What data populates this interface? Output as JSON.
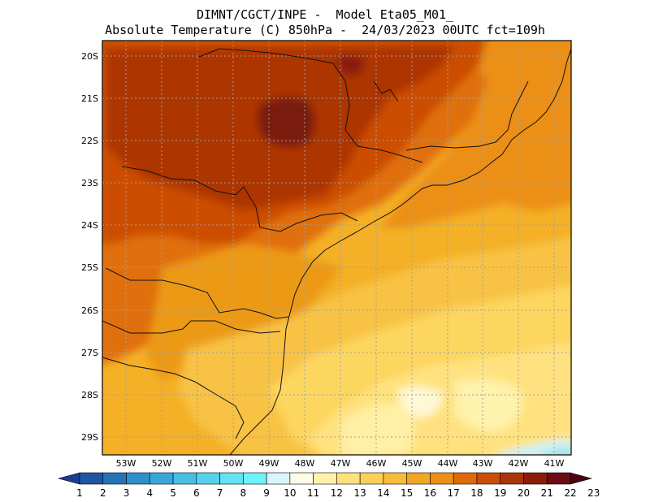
{
  "header": {
    "line1": "DIMNT/CGCT/INPE -  Model Eta05_M01_",
    "line2": "Absolute Temperature (C) 850hPa -  24/03/2023 00UTC fct=109h"
  },
  "map": {
    "lat_ticks": [
      "20S",
      "21S",
      "22S",
      "23S",
      "24S",
      "25S",
      "26S",
      "27S",
      "28S",
      "29S"
    ],
    "lon_ticks": [
      "53W",
      "52W",
      "51W",
      "50W",
      "49W",
      "48W",
      "47W",
      "46W",
      "45W",
      "44W",
      "43W",
      "42W",
      "41W"
    ],
    "lat_range": [
      -29.6,
      -19.8
    ],
    "lon_range": [
      -53.7,
      -40.6
    ],
    "grid": true
  },
  "colorbar": {
    "labels": [
      "1",
      "2",
      "3",
      "4",
      "5",
      "6",
      "7",
      "8",
      "9",
      "10",
      "11",
      "12",
      "13",
      "14",
      "15",
      "16",
      "17",
      "18",
      "19",
      "20",
      "21",
      "22",
      "23"
    ],
    "colors": [
      "#1b3d8f",
      "#1f56a3",
      "#2672b8",
      "#2e8fcb",
      "#38a8da",
      "#46bfe6",
      "#55d3ee",
      "#63e3f3",
      "#6ff3fb",
      "#d6f6fb",
      "#fffbe6",
      "#fff2a8",
      "#ffe07a",
      "#fdd05a",
      "#f8bc3b",
      "#f2a722",
      "#ec8f14",
      "#e06a08",
      "#cc4d05",
      "#ad3406",
      "#8b1d0b",
      "#6b0d12",
      "#4b0510"
    ]
  }
}
